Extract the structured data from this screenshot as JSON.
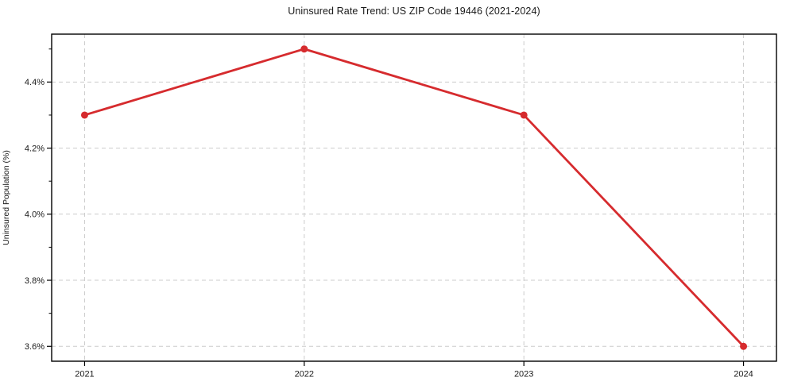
{
  "chart_data": {
    "type": "line",
    "title": "Uninsured Rate Trend: US ZIP Code 19446 (2021-2024)",
    "xlabel": "",
    "ylabel": "Uninsured Population (%)",
    "categories": [
      "2021",
      "2022",
      "2023",
      "2024"
    ],
    "x": [
      2021,
      2022,
      2023,
      2024
    ],
    "series": [
      {
        "name": "Uninsured Population (%)",
        "values": [
          4.3,
          4.5,
          4.3,
          3.6
        ]
      }
    ],
    "xlim": [
      2020.85,
      2024.15
    ],
    "ylim": [
      3.555,
      4.545
    ],
    "yticks": {
      "major": [
        3.6,
        3.8,
        4.0,
        4.2,
        4.4
      ],
      "major_labels": [
        "3.6%",
        "3.8%",
        "4.0%",
        "4.2%",
        "4.4%"
      ],
      "minor": [
        3.7,
        3.9,
        4.1,
        4.3,
        4.5
      ]
    },
    "grid": true,
    "grid_style": "dashed",
    "legend": "none",
    "marker": "circle",
    "colors": {
      "line": "#d62b2e",
      "marker": "#d62b2e",
      "grid": "#cccccc",
      "spine": "#000000",
      "text": "#1a1a1a",
      "background": "#ffffff"
    }
  }
}
